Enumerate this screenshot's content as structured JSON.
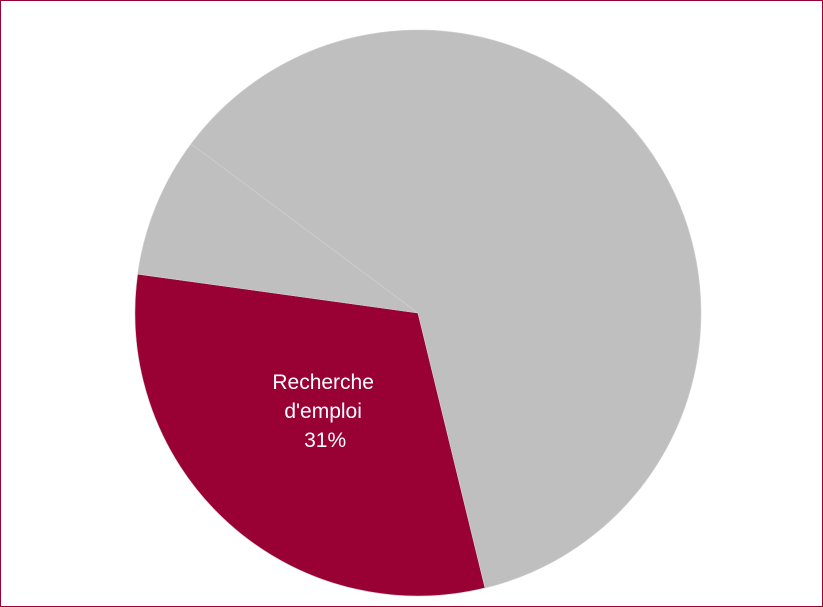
{
  "chart_data": {
    "type": "pie",
    "categories": [
      "Recherche d'emploi",
      null,
      null
    ],
    "values": [
      31,
      8,
      61
    ],
    "value_labels": [
      "31%",
      null,
      null
    ],
    "colors": [
      "#990033",
      "#bfbfbf",
      "#bfbfbf"
    ]
  }
}
